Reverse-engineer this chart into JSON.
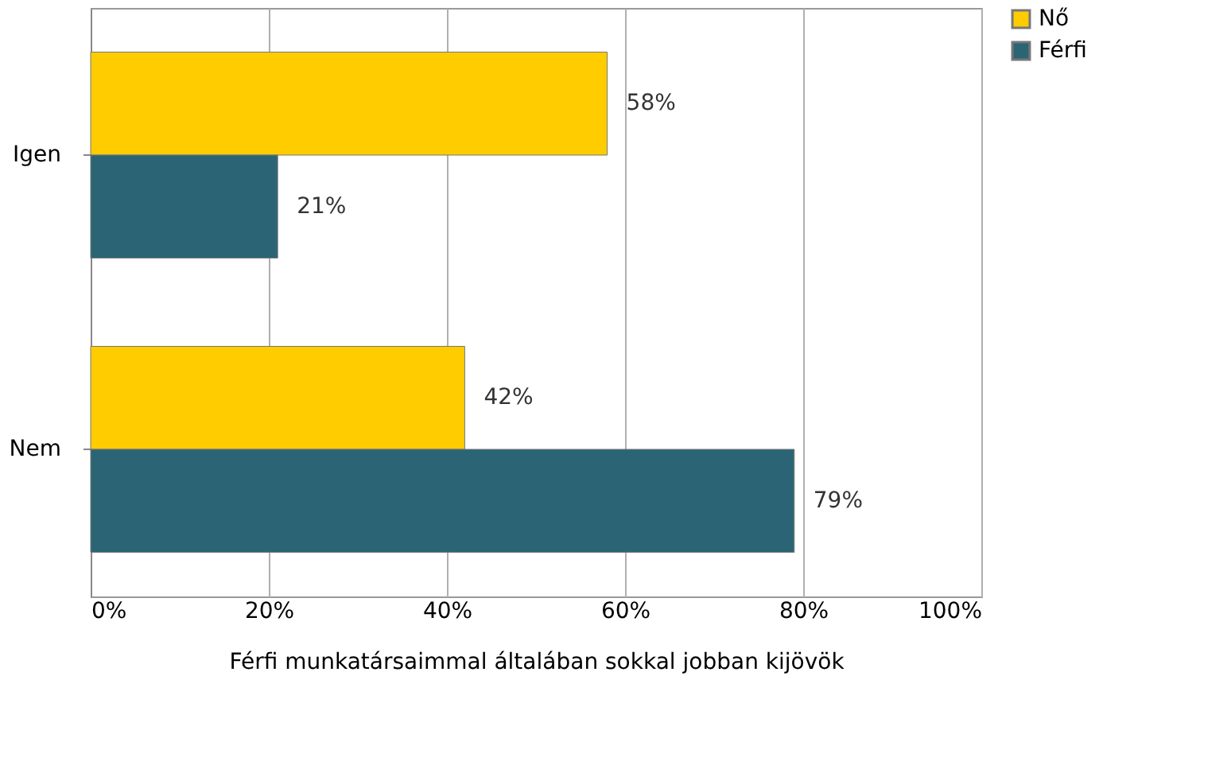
{
  "chart_data": {
    "type": "bar",
    "orientation": "horizontal",
    "xlabel": "Férfi munkatársaimmal általában sokkal jobban kijövök",
    "categories": [
      "Igen",
      "Nem"
    ],
    "series": [
      {
        "name": "Nő",
        "color": "#ffcc00",
        "values": [
          58,
          42
        ],
        "value_labels": [
          "58%",
          "42%"
        ]
      },
      {
        "name": "Férfi",
        "color": "#2b6575",
        "values": [
          21,
          79
        ],
        "value_labels": [
          "21%",
          "79%"
        ]
      }
    ],
    "xlim": [
      0,
      100
    ],
    "xticks": [
      {
        "value": 0,
        "label": "0%"
      },
      {
        "value": 20,
        "label": "20%"
      },
      {
        "value": 40,
        "label": "40%"
      },
      {
        "value": 60,
        "label": "60%"
      },
      {
        "value": 80,
        "label": "80%"
      },
      {
        "value": 100,
        "label": "100%"
      }
    ],
    "grid": "x",
    "legend": "right"
  }
}
